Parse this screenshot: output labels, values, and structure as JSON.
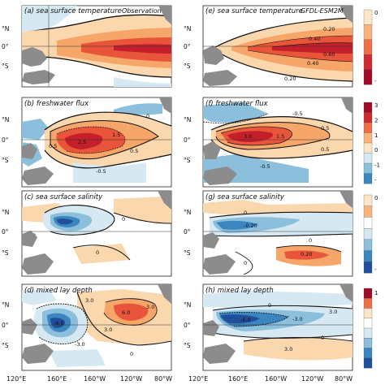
{
  "panels": [
    {
      "id": "a",
      "title": "(a) sea surface temperature",
      "right_label": "Observation",
      "cbar": "sst",
      "kind": "sst",
      "contours": []
    },
    {
      "id": "e",
      "title": "(e) sea surface temperature",
      "right_label": "GFDL-ESM2M",
      "cbar": "sst",
      "kind": "sst",
      "contours": [
        "0.20",
        "0.40",
        "0.40",
        "0.60",
        "0.20"
      ]
    },
    {
      "id": "b",
      "title": "(b) freshwater flux",
      "right_label": "",
      "cbar": "fwf",
      "kind": "fwf",
      "contours": [
        "0.5",
        "1.5",
        "2.5",
        "0.5",
        "-0.5",
        "0"
      ]
    },
    {
      "id": "f",
      "title": "(f) freshwater flux",
      "right_label": "",
      "cbar": "fwf",
      "kind": "fwf",
      "contours": [
        "-0.5",
        "0.5",
        "1.5",
        "3.0",
        "0.5",
        "-0.5"
      ]
    },
    {
      "id": "c",
      "title": "(c) sea surface salinity",
      "right_label": "",
      "cbar": "sss",
      "kind": "sss",
      "contours": [
        "0",
        "0",
        "0"
      ]
    },
    {
      "id": "g",
      "title": "(g) sea surface salinity",
      "right_label": "",
      "cbar": "sss",
      "kind": "sss",
      "contours": [
        "0",
        "-0.20",
        "0",
        "0.20",
        "0"
      ]
    },
    {
      "id": "d",
      "title": "(d) mixed lay depth",
      "right_label": "",
      "cbar": "mld",
      "kind": "mld",
      "contours": [
        "3.0",
        "3.0",
        "6.0",
        "-6.0",
        "-3.0",
        "3.0",
        "0"
      ]
    },
    {
      "id": "h",
      "title": "(h) mixed lay depth",
      "right_label": "",
      "cbar": "mld",
      "kind": "mld",
      "contours": [
        "0",
        "-3.0",
        "-6.0",
        "3.0",
        "0",
        "3.0"
      ]
    }
  ],
  "lat_labels": [
    "°N",
    "0°",
    "°S"
  ],
  "lon_labels_left": [
    "120°E",
    "160°E",
    "160°W",
    "120°W",
    "80°W"
  ],
  "lon_labels_right": [
    "120°E",
    "160°E",
    "160°W",
    "120°W",
    "80°W"
  ],
  "colorbars": {
    "sst": {
      "ticks": [
        "0",
        "-"
      ],
      "colors": [
        "#fde6c8",
        "#f9b47a",
        "#ee6f45",
        "#ce2b2e",
        "#9e0c28"
      ]
    },
    "fwf": {
      "ticks": [
        "3",
        "2",
        "1",
        "0",
        "-1",
        "-"
      ],
      "colors": [
        "#9e0c28",
        "#ce2b2e",
        "#ee6f45",
        "#f9b47a",
        "#fde6c8",
        "#d6e9f3",
        "#8bbfdc",
        "#3c86c0"
      ]
    },
    "sss": {
      "ticks": [
        "0",
        "-"
      ],
      "colors": [
        "#fde6c8",
        "#f9b47a",
        "#ffffff",
        "#d6e9f3",
        "#8bbfdc",
        "#3c86c0",
        "#1f4f9a"
      ]
    },
    "mld": {
      "ticks": [
        "1"
      ],
      "colors": [
        "#9e0c28",
        "#ee6f45",
        "#fde6c8",
        "#ffffff",
        "#d6e9f3",
        "#8bbfdc",
        "#3c86c0",
        "#1f4f9a"
      ]
    }
  },
  "colors": {
    "land": "#8c8c8c",
    "deep_red": "#c51f2c",
    "red": "#e8553b",
    "orange": "#f7a66a",
    "light_orange": "#fbd7ae",
    "pale": "#fef2e2",
    "light_blue": "#d6e9f3",
    "blue": "#8bbfdc",
    "mid_blue": "#3c86c0",
    "dark_blue": "#1f4f9a"
  }
}
